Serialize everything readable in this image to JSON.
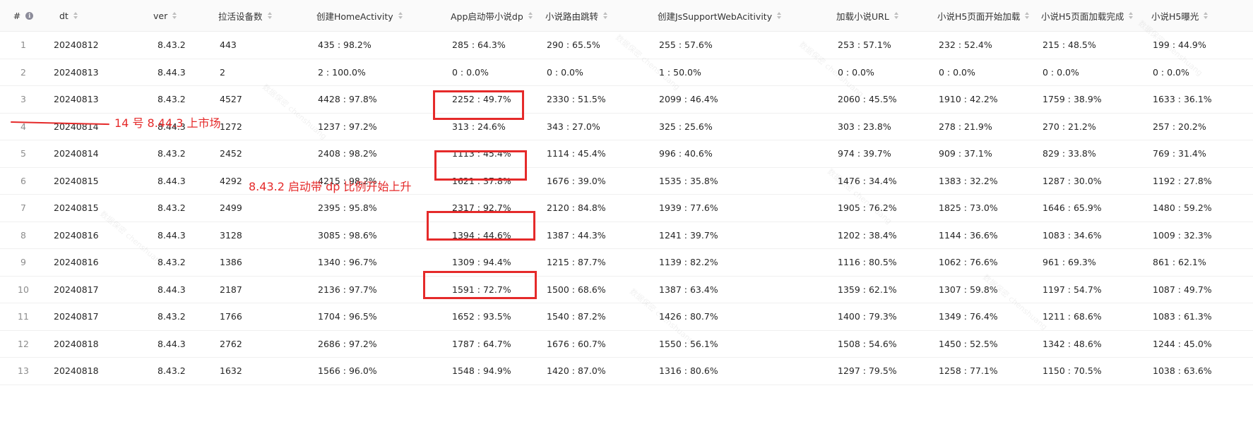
{
  "table": {
    "columns": [
      {
        "key": "idx",
        "label": "#",
        "info": true,
        "sortable": false
      },
      {
        "key": "dt",
        "label": "dt",
        "sortable": true
      },
      {
        "key": "ver",
        "label": "ver",
        "sortable": true
      },
      {
        "key": "devices",
        "label": "拉活设备数",
        "sortable": true
      },
      {
        "key": "home",
        "label": "创建HomeActivity",
        "sortable": true
      },
      {
        "key": "dp",
        "label": "App启动带小说dp",
        "sortable": true
      },
      {
        "key": "route",
        "label": "小说路由跳转",
        "sortable": true
      },
      {
        "key": "jsweb",
        "label": "创建JsSupportWebAcitivity",
        "sortable": true
      },
      {
        "key": "url",
        "label": "加载小说URL",
        "sortable": true
      },
      {
        "key": "h5start",
        "label": "小说H5页面开始加载",
        "sortable": true
      },
      {
        "key": "h5done",
        "label": "小说H5页面加载完成",
        "sortable": true
      },
      {
        "key": "h5expo",
        "label": "小说H5曝光",
        "sortable": true
      }
    ],
    "rows": [
      [
        "1",
        "20240812",
        "8.43.2",
        "443",
        "435 : 98.2%",
        "285 : 64.3%",
        "290 : 65.5%",
        "255 : 57.6%",
        "253 : 57.1%",
        "232 : 52.4%",
        "215 : 48.5%",
        "199 : 44.9%"
      ],
      [
        "2",
        "20240813",
        "8.44.3",
        "2",
        "2 : 100.0%",
        "0 : 0.0%",
        "0 : 0.0%",
        "1 : 50.0%",
        "0 : 0.0%",
        "0 : 0.0%",
        "0 : 0.0%",
        "0 : 0.0%"
      ],
      [
        "3",
        "20240813",
        "8.43.2",
        "4527",
        "4428 : 97.8%",
        "2252 : 49.7%",
        "2330 : 51.5%",
        "2099 : 46.4%",
        "2060 : 45.5%",
        "1910 : 42.2%",
        "1759 : 38.9%",
        "1633 : 36.1%"
      ],
      [
        "4",
        "20240814",
        "8.44.3",
        "1272",
        "1237 : 97.2%",
        "313 : 24.6%",
        "343 : 27.0%",
        "325 : 25.6%",
        "303 : 23.8%",
        "278 : 21.9%",
        "270 : 21.2%",
        "257 : 20.2%"
      ],
      [
        "5",
        "20240814",
        "8.43.2",
        "2452",
        "2408 : 98.2%",
        "1113 : 45.4%",
        "1114 : 45.4%",
        "996 : 40.6%",
        "974 : 39.7%",
        "909 : 37.1%",
        "829 : 33.8%",
        "769 : 31.4%"
      ],
      [
        "6",
        "20240815",
        "8.44.3",
        "4292",
        "4215 : 98.2%",
        "1621 : 37.8%",
        "1676 : 39.0%",
        "1535 : 35.8%",
        "1476 : 34.4%",
        "1383 : 32.2%",
        "1287 : 30.0%",
        "1192 : 27.8%"
      ],
      [
        "7",
        "20240815",
        "8.43.2",
        "2499",
        "2395 : 95.8%",
        "2317 : 92.7%",
        "2120 : 84.8%",
        "1939 : 77.6%",
        "1905 : 76.2%",
        "1825 : 73.0%",
        "1646 : 65.9%",
        "1480 : 59.2%"
      ],
      [
        "8",
        "20240816",
        "8.44.3",
        "3128",
        "3085 : 98.6%",
        "1394 : 44.6%",
        "1387 : 44.3%",
        "1241 : 39.7%",
        "1202 : 38.4%",
        "1144 : 36.6%",
        "1083 : 34.6%",
        "1009 : 32.3%"
      ],
      [
        "9",
        "20240816",
        "8.43.2",
        "1386",
        "1340 : 96.7%",
        "1309 : 94.4%",
        "1215 : 87.7%",
        "1139 : 82.2%",
        "1116 : 80.5%",
        "1062 : 76.6%",
        "961 : 69.3%",
        "861 : 62.1%"
      ],
      [
        "10",
        "20240817",
        "8.44.3",
        "2187",
        "2136 : 97.7%",
        "1591 : 72.7%",
        "1500 : 68.6%",
        "1387 : 63.4%",
        "1359 : 62.1%",
        "1307 : 59.8%",
        "1197 : 54.7%",
        "1087 : 49.7%"
      ],
      [
        "11",
        "20240817",
        "8.43.2",
        "1766",
        "1704 : 96.5%",
        "1652 : 93.5%",
        "1540 : 87.2%",
        "1426 : 80.7%",
        "1400 : 79.3%",
        "1349 : 76.4%",
        "1211 : 68.6%",
        "1083 : 61.3%"
      ],
      [
        "12",
        "20240818",
        "8.44.3",
        "2762",
        "2686 : 97.2%",
        "1787 : 64.7%",
        "1676 : 60.7%",
        "1550 : 56.1%",
        "1508 : 54.6%",
        "1450 : 52.5%",
        "1342 : 48.6%",
        "1244 : 45.0%"
      ],
      [
        "13",
        "20240818",
        "8.43.2",
        "1632",
        "1566 : 96.0%",
        "1548 : 94.9%",
        "1420 : 87.0%",
        "1316 : 80.6%",
        "1297 : 79.5%",
        "1258 : 77.1%",
        "1150 : 70.5%",
        "1038 : 63.6%"
      ]
    ]
  },
  "annotations": {
    "color": "#e52a2a",
    "note_market": "14 号 8.44.3 上市场",
    "note_dp_rise": "8.43.2 启动带 dp 比例开始上升"
  },
  "watermark": {
    "text": "数据保密 chenshuang"
  }
}
